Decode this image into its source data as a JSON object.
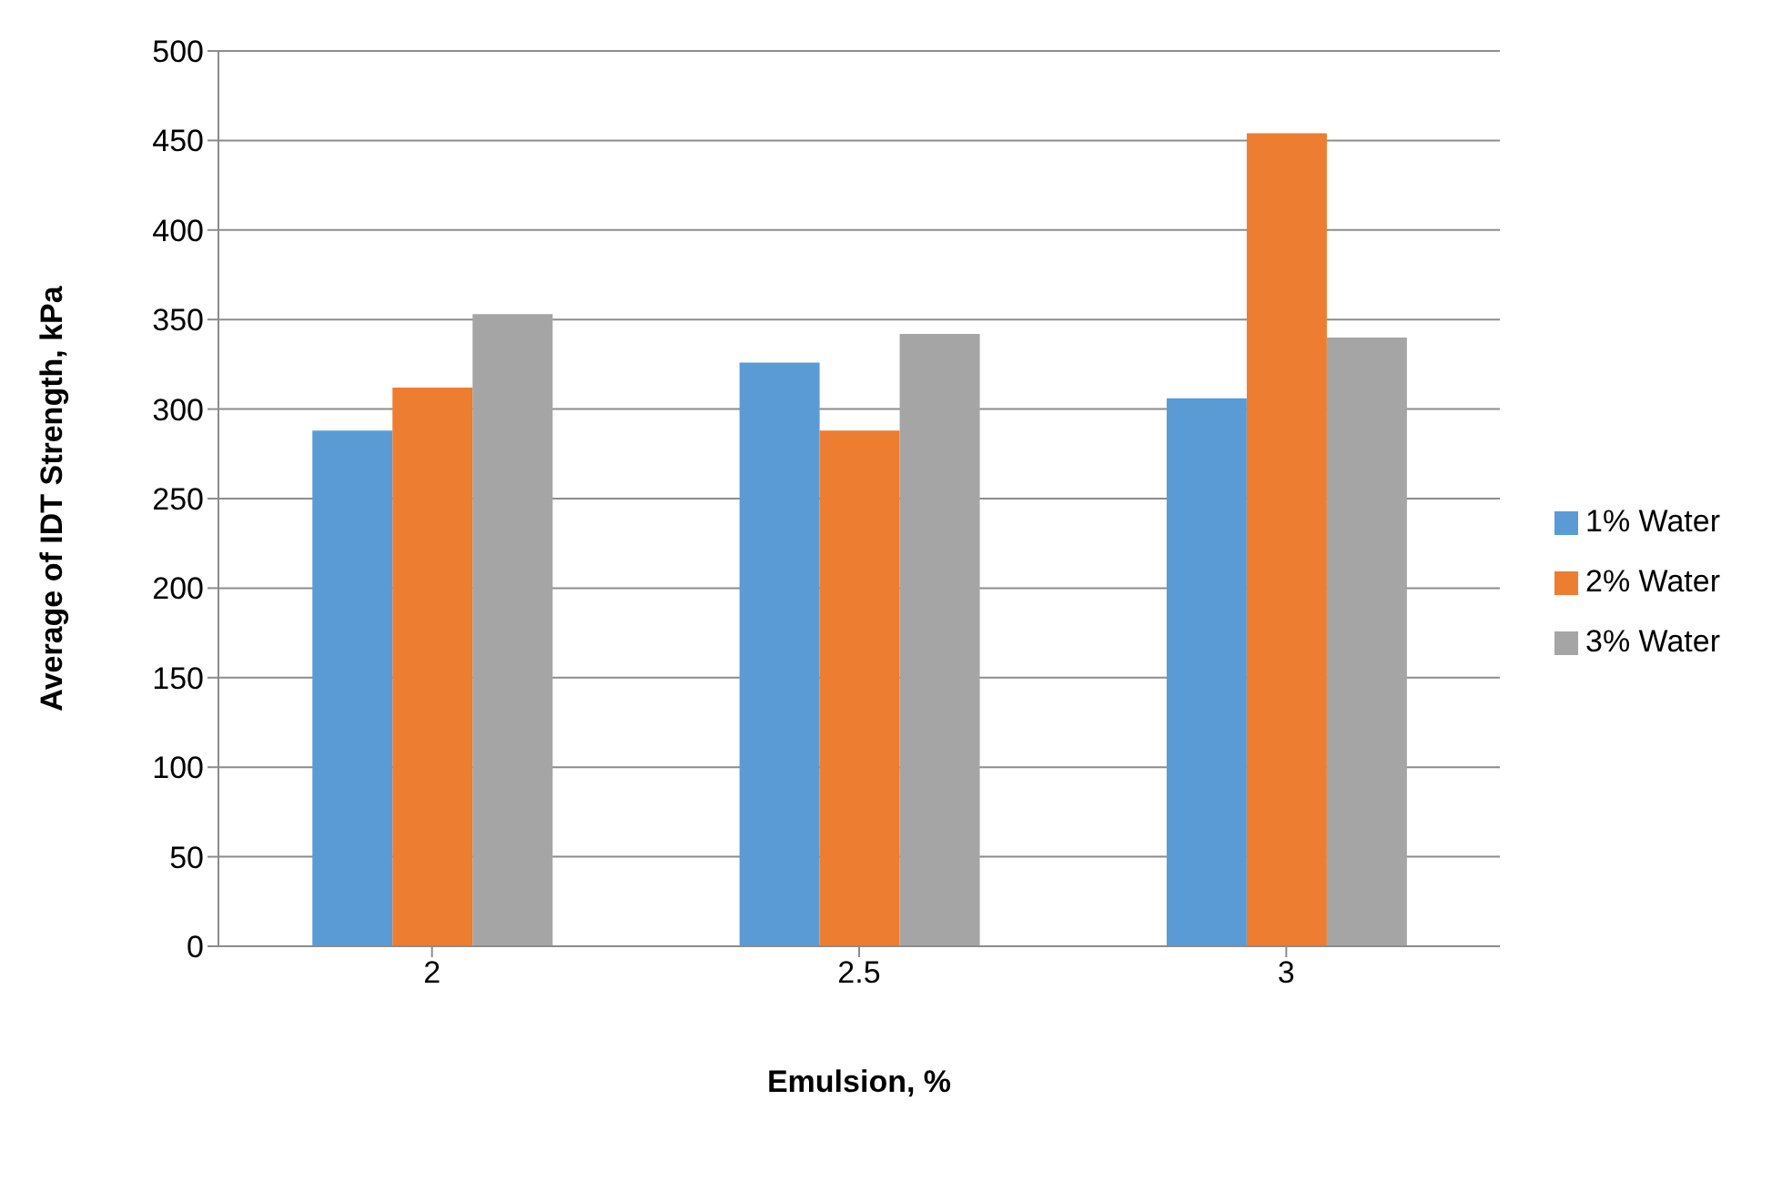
{
  "chart_data": {
    "type": "bar",
    "xlabel": "Emulsion, %",
    "ylabel": "Average of IDT Strength, kPa",
    "categories": [
      "2",
      "2.5",
      "3"
    ],
    "series": [
      {
        "name": "1% Water",
        "color": "#5b9bd5",
        "values": [
          288,
          326,
          306
        ]
      },
      {
        "name": "2% Water",
        "color": "#ed7d31",
        "values": [
          312,
          288,
          454
        ]
      },
      {
        "name": "3% Water",
        "color": "#a5a5a5",
        "values": [
          353,
          342,
          340
        ]
      }
    ],
    "ylim": [
      0,
      500
    ],
    "yticks": [
      0,
      50,
      100,
      150,
      200,
      250,
      300,
      350,
      400,
      450,
      500
    ],
    "grid": "y",
    "legend": "right"
  }
}
